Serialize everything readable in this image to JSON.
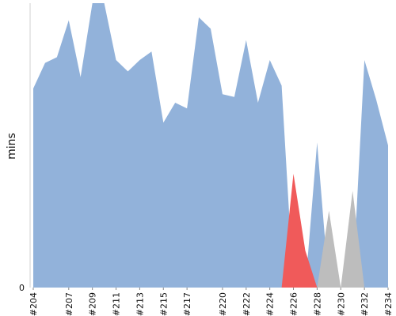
{
  "chart_data": {
    "type": "area",
    "title": "",
    "xlabel": "",
    "ylabel": "mins",
    "y_tick_labels": [
      "0"
    ],
    "x": [
      "#204",
      "#205",
      "#206",
      "#207",
      "#208",
      "#209",
      "#210",
      "#211",
      "#212",
      "#213",
      "#214",
      "#215",
      "#216",
      "#217",
      "#218",
      "#219",
      "#220",
      "#221",
      "#222",
      "#223",
      "#224",
      "#225",
      "#226",
      "#227",
      "#228",
      "#229",
      "#230",
      "#231",
      "#232",
      "#233",
      "#234"
    ],
    "x_tick_labels": [
      "#204",
      "#207",
      "#209",
      "#211",
      "#213",
      "#215",
      "#217",
      "#220",
      "#222",
      "#224",
      "#226",
      "#228",
      "#230",
      "#232",
      "#234"
    ],
    "series": [
      {
        "status": "success",
        "color": "#92b2da",
        "values": [
          70,
          79,
          81,
          94,
          74,
          100,
          100,
          80,
          76,
          80,
          83,
          58,
          65,
          63,
          95,
          91,
          68,
          67,
          87,
          65,
          80,
          71,
          0,
          0,
          51,
          0,
          0,
          0,
          80,
          66,
          50
        ]
      },
      {
        "status": "failure",
        "color": "#f05a5a",
        "values": [
          0,
          0,
          0,
          0,
          0,
          0,
          0,
          0,
          0,
          0,
          0,
          0,
          0,
          0,
          0,
          0,
          0,
          0,
          0,
          0,
          0,
          0,
          40,
          13,
          0,
          0,
          0,
          0,
          0,
          0,
          0
        ]
      },
      {
        "status": "aborted",
        "color": "#bdbdbd",
        "values": [
          0,
          0,
          0,
          0,
          0,
          0,
          0,
          0,
          0,
          0,
          0,
          0,
          0,
          0,
          0,
          0,
          0,
          0,
          0,
          0,
          0,
          0,
          0,
          0,
          0,
          27,
          0,
          34,
          0,
          0,
          0
        ]
      }
    ],
    "ylim": [
      0,
      100
    ],
    "grid": false,
    "legend": "none"
  }
}
